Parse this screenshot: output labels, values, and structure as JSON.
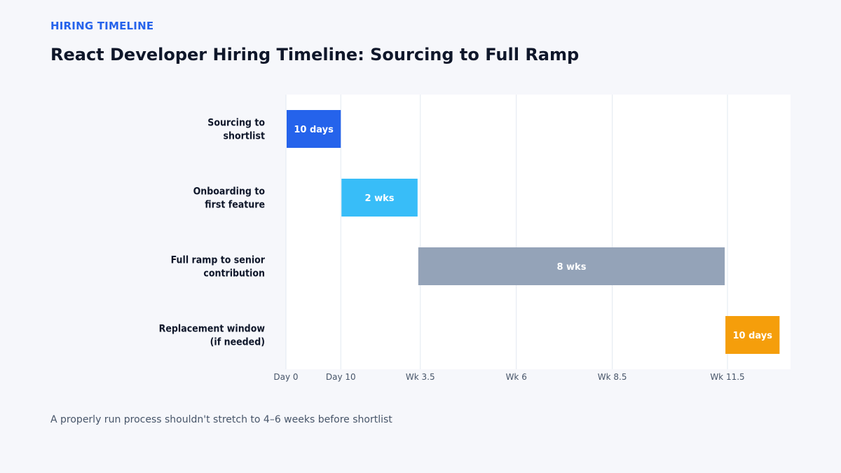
{
  "header": {
    "eyebrow": "HIRING TIMELINE",
    "title": "React Developer Hiring Timeline: Sourcing to Full Ramp"
  },
  "footer": {
    "caption": "A properly run process shouldn't stretch to 4–6 weeks before shortlist"
  },
  "chart_data": {
    "type": "bar",
    "orientation": "horizontal-gantt",
    "x_unit": "days",
    "xlim": [
      0,
      92
    ],
    "grid": true,
    "x_ticks": [
      {
        "value": 0,
        "label": "Day 0"
      },
      {
        "value": 10,
        "label": "Day 10"
      },
      {
        "value": 24.5,
        "label": "Wk 3.5"
      },
      {
        "value": 42,
        "label": "Wk 6"
      },
      {
        "value": 59.5,
        "label": "Wk 8.5"
      },
      {
        "value": 80.5,
        "label": "Wk 11.5"
      }
    ],
    "tasks": [
      {
        "label_lines": [
          "Sourcing to",
          "shortlist"
        ],
        "start": 0,
        "end": 10,
        "bar_label": "10 days",
        "color": "#2563eb"
      },
      {
        "label_lines": [
          "Onboarding to",
          "first feature"
        ],
        "start": 10,
        "end": 24,
        "bar_label": "2 wks",
        "color": "#38bdf8"
      },
      {
        "label_lines": [
          "Full ramp to senior",
          "contribution"
        ],
        "start": 24,
        "end": 80,
        "bar_label": "8 wks",
        "color": "#94a3b8"
      },
      {
        "label_lines": [
          "Replacement window",
          "(if needed)"
        ],
        "start": 80,
        "end": 90,
        "bar_label": "10 days",
        "color": "#f59e0b"
      }
    ]
  }
}
